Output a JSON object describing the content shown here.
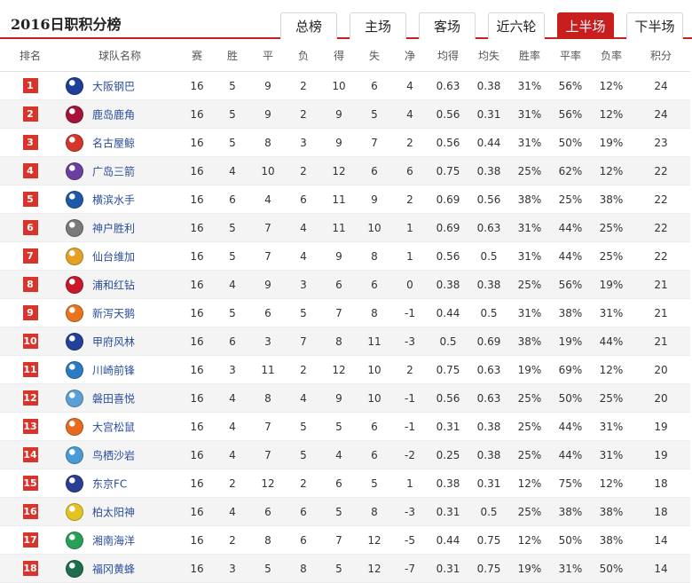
{
  "title": "2016日职积分榜",
  "tabs": [
    {
      "label": "总榜",
      "active": false
    },
    {
      "label": "主场",
      "active": false
    },
    {
      "label": "客场",
      "active": false
    },
    {
      "label": "近六轮",
      "active": false
    },
    {
      "label": "上半场",
      "active": true
    },
    {
      "label": "下半场",
      "active": false
    }
  ],
  "columns": [
    "排名",
    "球队名称",
    "赛",
    "胜",
    "平",
    "负",
    "得",
    "失",
    "净",
    "均得",
    "均失",
    "胜率",
    "平率",
    "负率",
    "积分"
  ],
  "rows": [
    {
      "rank": "1",
      "team": "大阪钢巴",
      "logo_color": "#1d3f9a",
      "played": "16",
      "w": "5",
      "d": "9",
      "l": "2",
      "gf": "10",
      "ga": "6",
      "gd": "4",
      "avg_f": "0.63",
      "avg_a": "0.38",
      "w_rate": "31%",
      "d_rate": "56%",
      "l_rate": "12%",
      "pts": "24"
    },
    {
      "rank": "2",
      "team": "鹿岛鹿角",
      "logo_color": "#a8123a",
      "played": "16",
      "w": "5",
      "d": "9",
      "l": "2",
      "gf": "9",
      "ga": "5",
      "gd": "4",
      "avg_f": "0.56",
      "avg_a": "0.31",
      "w_rate": "31%",
      "d_rate": "56%",
      "l_rate": "12%",
      "pts": "24"
    },
    {
      "rank": "3",
      "team": "名古屋鲸",
      "logo_color": "#d2372a",
      "played": "16",
      "w": "5",
      "d": "8",
      "l": "3",
      "gf": "9",
      "ga": "7",
      "gd": "2",
      "avg_f": "0.56",
      "avg_a": "0.44",
      "w_rate": "31%",
      "d_rate": "50%",
      "l_rate": "19%",
      "pts": "23"
    },
    {
      "rank": "4",
      "team": "广岛三箭",
      "logo_color": "#6b3fa0",
      "played": "16",
      "w": "4",
      "d": "10",
      "l": "2",
      "gf": "12",
      "ga": "6",
      "gd": "6",
      "avg_f": "0.75",
      "avg_a": "0.38",
      "w_rate": "25%",
      "d_rate": "62%",
      "l_rate": "12%",
      "pts": "22"
    },
    {
      "rank": "5",
      "team": "横滨水手",
      "logo_color": "#1f58a8",
      "played": "16",
      "w": "6",
      "d": "4",
      "l": "6",
      "gf": "11",
      "ga": "9",
      "gd": "2",
      "avg_f": "0.69",
      "avg_a": "0.56",
      "w_rate": "38%",
      "d_rate": "25%",
      "l_rate": "38%",
      "pts": "22"
    },
    {
      "rank": "6",
      "team": "神户胜利",
      "logo_color": "#7a7a7a",
      "played": "16",
      "w": "5",
      "d": "7",
      "l": "4",
      "gf": "11",
      "ga": "10",
      "gd": "1",
      "avg_f": "0.69",
      "avg_a": "0.63",
      "w_rate": "31%",
      "d_rate": "44%",
      "l_rate": "25%",
      "pts": "22"
    },
    {
      "rank": "7",
      "team": "仙台维加",
      "logo_color": "#e5a126",
      "played": "16",
      "w": "5",
      "d": "7",
      "l": "4",
      "gf": "9",
      "ga": "8",
      "gd": "1",
      "avg_f": "0.56",
      "avg_a": "0.5",
      "w_rate": "31%",
      "d_rate": "44%",
      "l_rate": "25%",
      "pts": "22"
    },
    {
      "rank": "8",
      "team": "浦和红钻",
      "logo_color": "#c9182a",
      "played": "16",
      "w": "4",
      "d": "9",
      "l": "3",
      "gf": "6",
      "ga": "6",
      "gd": "0",
      "avg_f": "0.38",
      "avg_a": "0.38",
      "w_rate": "25%",
      "d_rate": "56%",
      "l_rate": "19%",
      "pts": "21"
    },
    {
      "rank": "9",
      "team": "新泻天鹅",
      "logo_color": "#e8741e",
      "played": "16",
      "w": "5",
      "d": "6",
      "l": "5",
      "gf": "7",
      "ga": "8",
      "gd": "-1",
      "avg_f": "0.44",
      "avg_a": "0.5",
      "w_rate": "31%",
      "d_rate": "38%",
      "l_rate": "31%",
      "pts": "21"
    },
    {
      "rank": "10",
      "team": "甲府风林",
      "logo_color": "#23409a",
      "played": "16",
      "w": "6",
      "d": "3",
      "l": "7",
      "gf": "8",
      "ga": "11",
      "gd": "-3",
      "avg_f": "0.5",
      "avg_a": "0.69",
      "w_rate": "38%",
      "d_rate": "19%",
      "l_rate": "44%",
      "pts": "21"
    },
    {
      "rank": "11",
      "team": "川崎前锋",
      "logo_color": "#2a7dc4",
      "played": "16",
      "w": "3",
      "d": "11",
      "l": "2",
      "gf": "12",
      "ga": "10",
      "gd": "2",
      "avg_f": "0.75",
      "avg_a": "0.63",
      "w_rate": "19%",
      "d_rate": "69%",
      "l_rate": "12%",
      "pts": "20"
    },
    {
      "rank": "12",
      "team": "磐田喜悦",
      "logo_color": "#5aa0d6",
      "played": "16",
      "w": "4",
      "d": "8",
      "l": "4",
      "gf": "9",
      "ga": "10",
      "gd": "-1",
      "avg_f": "0.56",
      "avg_a": "0.63",
      "w_rate": "25%",
      "d_rate": "50%",
      "l_rate": "25%",
      "pts": "20"
    },
    {
      "rank": "13",
      "team": "大宫松鼠",
      "logo_color": "#e86a1e",
      "played": "16",
      "w": "4",
      "d": "7",
      "l": "5",
      "gf": "5",
      "ga": "6",
      "gd": "-1",
      "avg_f": "0.31",
      "avg_a": "0.38",
      "w_rate": "25%",
      "d_rate": "44%",
      "l_rate": "31%",
      "pts": "19"
    },
    {
      "rank": "14",
      "team": "鸟栖沙岩",
      "logo_color": "#4a9bd5",
      "played": "16",
      "w": "4",
      "d": "7",
      "l": "5",
      "gf": "4",
      "ga": "6",
      "gd": "-2",
      "avg_f": "0.25",
      "avg_a": "0.38",
      "w_rate": "25%",
      "d_rate": "44%",
      "l_rate": "31%",
      "pts": "19"
    },
    {
      "rank": "15",
      "team": "东京FC",
      "logo_color": "#2a3f94",
      "played": "16",
      "w": "2",
      "d": "12",
      "l": "2",
      "gf": "6",
      "ga": "5",
      "gd": "1",
      "avg_f": "0.38",
      "avg_a": "0.31",
      "w_rate": "12%",
      "d_rate": "75%",
      "l_rate": "12%",
      "pts": "18"
    },
    {
      "rank": "16",
      "team": "柏太阳神",
      "logo_color": "#e3c321",
      "played": "16",
      "w": "4",
      "d": "6",
      "l": "6",
      "gf": "5",
      "ga": "8",
      "gd": "-3",
      "avg_f": "0.31",
      "avg_a": "0.5",
      "w_rate": "25%",
      "d_rate": "38%",
      "l_rate": "38%",
      "pts": "18"
    },
    {
      "rank": "17",
      "team": "湘南海洋",
      "logo_color": "#27a05a",
      "played": "16",
      "w": "2",
      "d": "8",
      "l": "6",
      "gf": "7",
      "ga": "12",
      "gd": "-5",
      "avg_f": "0.44",
      "avg_a": "0.75",
      "w_rate": "12%",
      "d_rate": "50%",
      "l_rate": "38%",
      "pts": "14"
    },
    {
      "rank": "18",
      "team": "福冈黄蜂",
      "logo_color": "#1e6e4e",
      "played": "16",
      "w": "3",
      "d": "5",
      "l": "8",
      "gf": "5",
      "ga": "12",
      "gd": "-7",
      "avg_f": "0.31",
      "avg_a": "0.75",
      "w_rate": "19%",
      "d_rate": "31%",
      "l_rate": "50%",
      "pts": "14"
    }
  ]
}
